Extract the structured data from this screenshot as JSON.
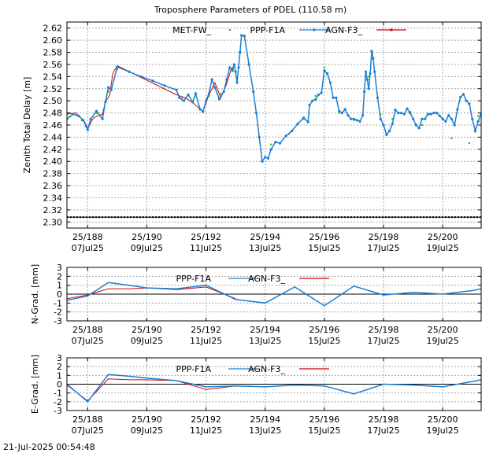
{
  "footer": {
    "timestamp": "21-Jul-2025 00:54:48"
  },
  "colors": {
    "met": "#00bb00",
    "ppp": "#1a7fd4",
    "agn": "#d40000",
    "ref": "#000000"
  },
  "chart_data": [
    {
      "id": "ztd",
      "type": "scatter",
      "title": "Troposphere Parameters of PDEL (110.58 m)",
      "ylabel": "Zenith Total Delay [m]",
      "xlim": [
        187.3,
        201.3
      ],
      "ylim": [
        2.29,
        2.63
      ],
      "yticks": [
        2.3,
        2.32,
        2.34,
        2.36,
        2.38,
        2.4,
        2.42,
        2.44,
        2.46,
        2.48,
        2.5,
        2.52,
        2.54,
        2.56,
        2.58,
        2.6,
        2.62
      ],
      "ytick_labels": [
        "2.30",
        "2.32",
        "2.34",
        "2.36",
        "2.38",
        "2.40",
        "2.42",
        "2.44",
        "2.46",
        "2.48",
        "2.50",
        "2.52",
        "2.54",
        "2.56",
        "2.58",
        "2.60",
        "2.62"
      ],
      "xticks": [
        188,
        190,
        192,
        194,
        196,
        198,
        200
      ],
      "xtick_labels_doy": [
        "25/188",
        "25/190",
        "25/192",
        "25/194",
        "25/196",
        "25/198",
        "25/200"
      ],
      "xtick_labels_date": [
        "07Jul25",
        "09Jul25",
        "11Jul25",
        "13Jul25",
        "15Jul25",
        "17Jul25",
        "19Jul25"
      ],
      "legend": [
        "MET-FW_",
        "PPP-F1A",
        "AGN-F3_"
      ],
      "reference_value": 2.308,
      "series": [
        {
          "name": "PPP-F1A",
          "x": [
            187.3,
            187.5,
            187.7,
            187.85,
            187.95,
            188.0,
            188.1,
            188.3,
            188.5,
            188.6,
            188.7,
            188.8,
            189.0,
            189.4,
            189.8,
            190.2,
            190.6,
            191.0,
            191.1,
            191.25,
            191.4,
            191.55,
            191.65,
            191.8,
            191.9,
            192.0,
            192.1,
            192.2,
            192.3,
            192.45,
            192.6,
            192.7,
            192.8,
            192.9,
            192.95,
            193.0,
            193.05,
            193.1,
            193.15,
            193.2,
            193.3,
            193.45,
            193.6,
            193.7,
            193.8,
            193.9,
            194.0,
            194.1,
            194.2,
            194.35,
            194.5,
            194.7,
            194.9,
            195.1,
            195.3,
            195.45,
            195.5,
            195.6,
            195.7,
            195.8,
            195.9,
            196.0,
            196.1,
            196.2,
            196.3,
            196.4,
            196.5,
            196.6,
            196.7,
            196.8,
            196.9,
            197.0,
            197.1,
            197.2,
            197.3,
            197.35,
            197.4,
            197.45,
            197.5,
            197.55,
            197.6,
            197.65,
            197.7,
            197.8,
            197.9,
            198.0,
            198.1,
            198.2,
            198.3,
            198.4,
            198.5,
            198.6,
            198.7,
            198.8,
            198.9,
            199.0,
            199.1,
            199.2,
            199.3,
            199.4,
            199.5,
            199.6,
            199.7,
            199.8,
            199.9,
            200.0,
            200.1,
            200.2,
            200.3,
            200.4,
            200.5,
            200.6,
            200.7,
            200.8,
            200.9,
            201.0,
            201.1,
            201.2,
            201.3
          ],
          "values": [
            2.47,
            2.478,
            2.475,
            2.468,
            2.458,
            2.452,
            2.47,
            2.483,
            2.47,
            2.498,
            2.522,
            2.518,
            2.556,
            2.548,
            2.54,
            2.533,
            2.525,
            2.518,
            2.505,
            2.5,
            2.51,
            2.498,
            2.512,
            2.486,
            2.482,
            2.5,
            2.512,
            2.535,
            2.522,
            2.503,
            2.515,
            2.535,
            2.555,
            2.55,
            2.56,
            2.548,
            2.53,
            2.555,
            2.58,
            2.608,
            2.607,
            2.56,
            2.515,
            2.48,
            2.44,
            2.4,
            2.407,
            2.405,
            2.42,
            2.432,
            2.43,
            2.442,
            2.45,
            2.462,
            2.472,
            2.465,
            2.493,
            2.5,
            2.502,
            2.51,
            2.513,
            2.55,
            2.545,
            2.53,
            2.505,
            2.505,
            2.483,
            2.48,
            2.486,
            2.476,
            2.47,
            2.47,
            2.468,
            2.466,
            2.476,
            2.515,
            2.548,
            2.535,
            2.52,
            2.545,
            2.582,
            2.57,
            2.548,
            2.505,
            2.47,
            2.46,
            2.444,
            2.45,
            2.462,
            2.485,
            2.48,
            2.48,
            2.478,
            2.487,
            2.48,
            2.47,
            2.46,
            2.455,
            2.47,
            2.47,
            2.478,
            2.478,
            2.48,
            2.48,
            2.475,
            2.47,
            2.466,
            2.476,
            2.47,
            2.46,
            2.486,
            2.506,
            2.511,
            2.5,
            2.495,
            2.47,
            2.45,
            2.466,
            2.48
          ]
        },
        {
          "name": "AGN-F3_",
          "x": [
            187.3,
            187.6,
            187.9,
            188.0,
            188.2,
            188.5,
            188.6,
            188.75,
            188.85,
            189.0,
            191.0,
            191.3,
            191.6,
            191.9,
            192.1,
            192.3,
            192.5,
            192.7,
            192.85,
            193.0
          ],
          "values": [
            2.478,
            2.48,
            2.465,
            2.454,
            2.472,
            2.478,
            2.498,
            2.51,
            2.545,
            2.558,
            2.51,
            2.505,
            2.495,
            2.482,
            2.51,
            2.53,
            2.505,
            2.528,
            2.552,
            2.56
          ]
        },
        {
          "name": "MET-FW_",
          "x": [
            187.4,
            187.8,
            188.3,
            188.7,
            189.0,
            191.2,
            191.6,
            192.1,
            192.5,
            192.9,
            193.6,
            194.2,
            194.8,
            195.3,
            195.7,
            196.0,
            196.5,
            197.0,
            197.5,
            197.9,
            198.3,
            198.9,
            199.3,
            199.9,
            200.3,
            200.6,
            200.9,
            201.2
          ],
          "values": [
            2.474,
            2.468,
            2.48,
            2.515,
            2.552,
            2.505,
            2.505,
            2.508,
            2.512,
            2.553,
            2.515,
            2.428,
            2.445,
            2.47,
            2.508,
            2.555,
            2.48,
            2.468,
            2.54,
            2.478,
            2.47,
            2.482,
            2.46,
            2.475,
            2.438,
            2.505,
            2.43,
            2.475
          ]
        }
      ]
    },
    {
      "id": "ngrad",
      "type": "line",
      "ylabel": "N-Grad. [mm]",
      "xlim": [
        187.3,
        201.3
      ],
      "ylim": [
        -3,
        3
      ],
      "yticks": [
        -3,
        -2,
        -1,
        0,
        1,
        2,
        3
      ],
      "ytick_labels": [
        "-3",
        "-2",
        "-1",
        "0",
        "1",
        "2",
        "3"
      ],
      "xticks": [
        188,
        190,
        192,
        194,
        196,
        198,
        200
      ],
      "xtick_labels_doy": [
        "25/188",
        "25/190",
        "25/192",
        "25/194",
        "25/196",
        "25/198",
        "25/200"
      ],
      "xtick_labels_date": [
        "07Jul25",
        "09Jul25",
        "11Jul25",
        "13Jul25",
        "15Jul25",
        "17Jul25",
        "19Jul25"
      ],
      "legend": [
        "PPP-F1A",
        "AGN-F3_"
      ],
      "reference_value": 0,
      "series": [
        {
          "name": "PPP-F1A",
          "x": [
            187.3,
            188.0,
            188.7,
            189.4,
            190.0,
            191.0,
            192.0,
            193.0,
            194.0,
            195.0,
            196.0,
            197.0,
            198.0,
            199.0,
            200.0,
            201.0,
            201.3
          ],
          "values": [
            -0.7,
            -0.2,
            1.3,
            1.0,
            0.7,
            0.6,
            1.0,
            -0.6,
            -1.0,
            0.8,
            -1.3,
            0.9,
            -0.1,
            0.2,
            0.0,
            0.4,
            0.6
          ]
        },
        {
          "name": "AGN-F3_",
          "x": [
            187.3,
            188.0,
            188.7,
            189.4,
            190.0,
            191.0,
            192.0,
            193.0
          ],
          "values": [
            -0.5,
            -0.1,
            0.6,
            0.6,
            0.7,
            0.5,
            0.8,
            -0.5
          ]
        }
      ]
    },
    {
      "id": "egrad",
      "type": "line",
      "ylabel": "E-Grad. [mm]",
      "xlim": [
        187.3,
        201.3
      ],
      "ylim": [
        -3,
        3
      ],
      "yticks": [
        -3,
        -2,
        -1,
        0,
        1,
        2,
        3
      ],
      "ytick_labels": [
        "-3",
        "-2",
        "-1",
        "0",
        "1",
        "2",
        "3"
      ],
      "xticks": [
        188,
        190,
        192,
        194,
        196,
        198,
        200
      ],
      "xtick_labels_doy": [
        "25/188",
        "25/190",
        "25/192",
        "25/194",
        "25/196",
        "25/198",
        "25/200"
      ],
      "xtick_labels_date": [
        "07Jul25",
        "09Jul25",
        "11Jul25",
        "13Jul25",
        "15Jul25",
        "17Jul25",
        "19Jul25"
      ],
      "legend": [
        "PPP-F1A",
        "AGN-F3_"
      ],
      "reference_value": 0,
      "series": [
        {
          "name": "PPP-F1A",
          "x": [
            187.3,
            188.0,
            188.7,
            189.4,
            190.0,
            191.0,
            192.0,
            193.0,
            194.0,
            195.0,
            196.0,
            197.0,
            198.0,
            199.0,
            200.0,
            201.0,
            201.3
          ],
          "values": [
            0.0,
            -2.0,
            1.1,
            0.9,
            0.7,
            0.4,
            -0.3,
            -0.2,
            -0.3,
            -0.1,
            -0.2,
            -1.1,
            0.0,
            -0.1,
            -0.3,
            0.3,
            0.5
          ]
        },
        {
          "name": "AGN-F3_",
          "x": [
            187.3,
            188.0,
            188.7,
            189.4,
            190.0,
            191.0,
            192.0,
            193.0
          ],
          "values": [
            -0.1,
            -1.9,
            0.6,
            0.5,
            0.5,
            0.4,
            -0.6,
            -0.2
          ]
        }
      ]
    }
  ]
}
